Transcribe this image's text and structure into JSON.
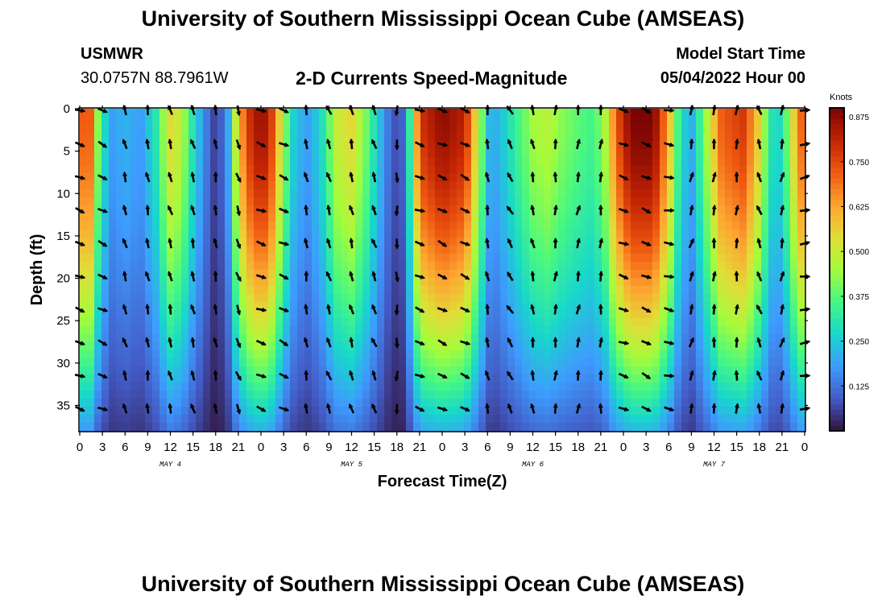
{
  "page_title": "University of Southern Mississippi Ocean Cube (AMSEAS)",
  "footer_title": "University of Southern Mississippi Ocean Cube (AMSEAS)",
  "station": {
    "name": "USMWR",
    "coords": "30.0757N  88.7961W"
  },
  "model": {
    "label": "Model Start Time",
    "value": "05/04/2022 Hour 00"
  },
  "chart_data": {
    "type": "heatmap",
    "title": "2-D Currents Speed-Magnitude",
    "xlabel": "Forecast Time(Z)",
    "ylabel": "Depth (ft)",
    "x_range_hours": [
      0,
      96
    ],
    "ylim": [
      0,
      38
    ],
    "x_tick_labels": [
      "0",
      "3",
      "6",
      "9",
      "12",
      "15",
      "18",
      "21",
      "0",
      "3",
      "6",
      "9",
      "12",
      "15",
      "18",
      "21",
      "0",
      "3",
      "6",
      "9",
      "12",
      "15",
      "18",
      "21",
      "0",
      "3",
      "6",
      "9",
      "12",
      "15",
      "18",
      "21",
      "0"
    ],
    "y_ticks": [
      0,
      5,
      10,
      15,
      20,
      25,
      30,
      35
    ],
    "date_labels": [
      {
        "text": "MAY 4",
        "hour": 12
      },
      {
        "text": "MAY 5",
        "hour": 36
      },
      {
        "text": "MAY 6",
        "hour": 60
      },
      {
        "text": "MAY 7",
        "hour": 84
      }
    ],
    "colorbar": {
      "unit": "Knots",
      "min": 0,
      "max": 0.9,
      "ticks": [
        "0.125",
        "0.250",
        "0.375",
        "0.500",
        "0.625",
        "0.750",
        "0.875"
      ],
      "tick_values": [
        0.125,
        0.25,
        0.375,
        0.5,
        0.625,
        0.75,
        0.875
      ]
    },
    "speed_profile_surface_knots": [
      [
        0,
        0.6
      ],
      [
        1,
        0.85
      ],
      [
        2.5,
        0.4
      ],
      [
        4,
        0.18
      ],
      [
        6,
        0.22
      ],
      [
        8,
        0.18
      ],
      [
        10,
        0.3
      ],
      [
        12,
        0.55
      ],
      [
        13.5,
        0.48
      ],
      [
        15,
        0.3
      ],
      [
        16.5,
        0.16
      ],
      [
        18,
        0.05
      ],
      [
        19.5,
        0.15
      ],
      [
        21,
        0.6
      ],
      [
        23,
        0.85
      ],
      [
        25,
        0.85
      ],
      [
        26.5,
        0.55
      ],
      [
        28,
        0.28
      ],
      [
        30,
        0.18
      ],
      [
        32,
        0.28
      ],
      [
        34,
        0.5
      ],
      [
        36,
        0.55
      ],
      [
        38,
        0.4
      ],
      [
        39.5,
        0.25
      ],
      [
        41,
        0.12
      ],
      [
        42.5,
        0.05
      ],
      [
        44,
        0.4
      ],
      [
        45,
        0.78
      ],
      [
        48,
        0.88
      ],
      [
        51,
        0.82
      ],
      [
        53,
        0.45
      ],
      [
        54.5,
        0.18
      ],
      [
        56,
        0.25
      ],
      [
        58,
        0.35
      ],
      [
        60,
        0.45
      ],
      [
        62,
        0.48
      ],
      [
        64,
        0.42
      ],
      [
        66,
        0.38
      ],
      [
        68,
        0.35
      ],
      [
        69.5,
        0.45
      ],
      [
        71,
        0.72
      ],
      [
        73,
        0.9
      ],
      [
        76,
        0.9
      ],
      [
        78,
        0.62
      ],
      [
        79.5,
        0.3
      ],
      [
        81,
        0.2
      ],
      [
        83,
        0.45
      ],
      [
        85,
        0.72
      ],
      [
        88,
        0.78
      ],
      [
        90,
        0.55
      ],
      [
        91.5,
        0.3
      ],
      [
        93,
        0.28
      ],
      [
        94.5,
        0.55
      ],
      [
        96,
        0.78
      ]
    ],
    "deep_decay_factor": 0.75,
    "vector_columns_hours": [
      0,
      3,
      6,
      9,
      12,
      15,
      18,
      21,
      24,
      27,
      30,
      33,
      36,
      39,
      42,
      45,
      48,
      51,
      54,
      57,
      60,
      63,
      66,
      69,
      72,
      75,
      78,
      81,
      84,
      87,
      90,
      93,
      96
    ],
    "vector_rows_ft": [
      0,
      4.2,
      8.1,
      12.0,
      15.9,
      19.8,
      23.7,
      27.6,
      31.5,
      35.4
    ],
    "vector_direction_deg_by_column": [
      110,
      115,
      345,
      350,
      345,
      345,
      350,
      160,
      110,
      115,
      350,
      340,
      345,
      340,
      180,
      110,
      115,
      115,
      350,
      330,
      350,
      5,
      10,
      5,
      110,
      115,
      100,
      15,
      5,
      5,
      340,
      15,
      80
    ]
  }
}
